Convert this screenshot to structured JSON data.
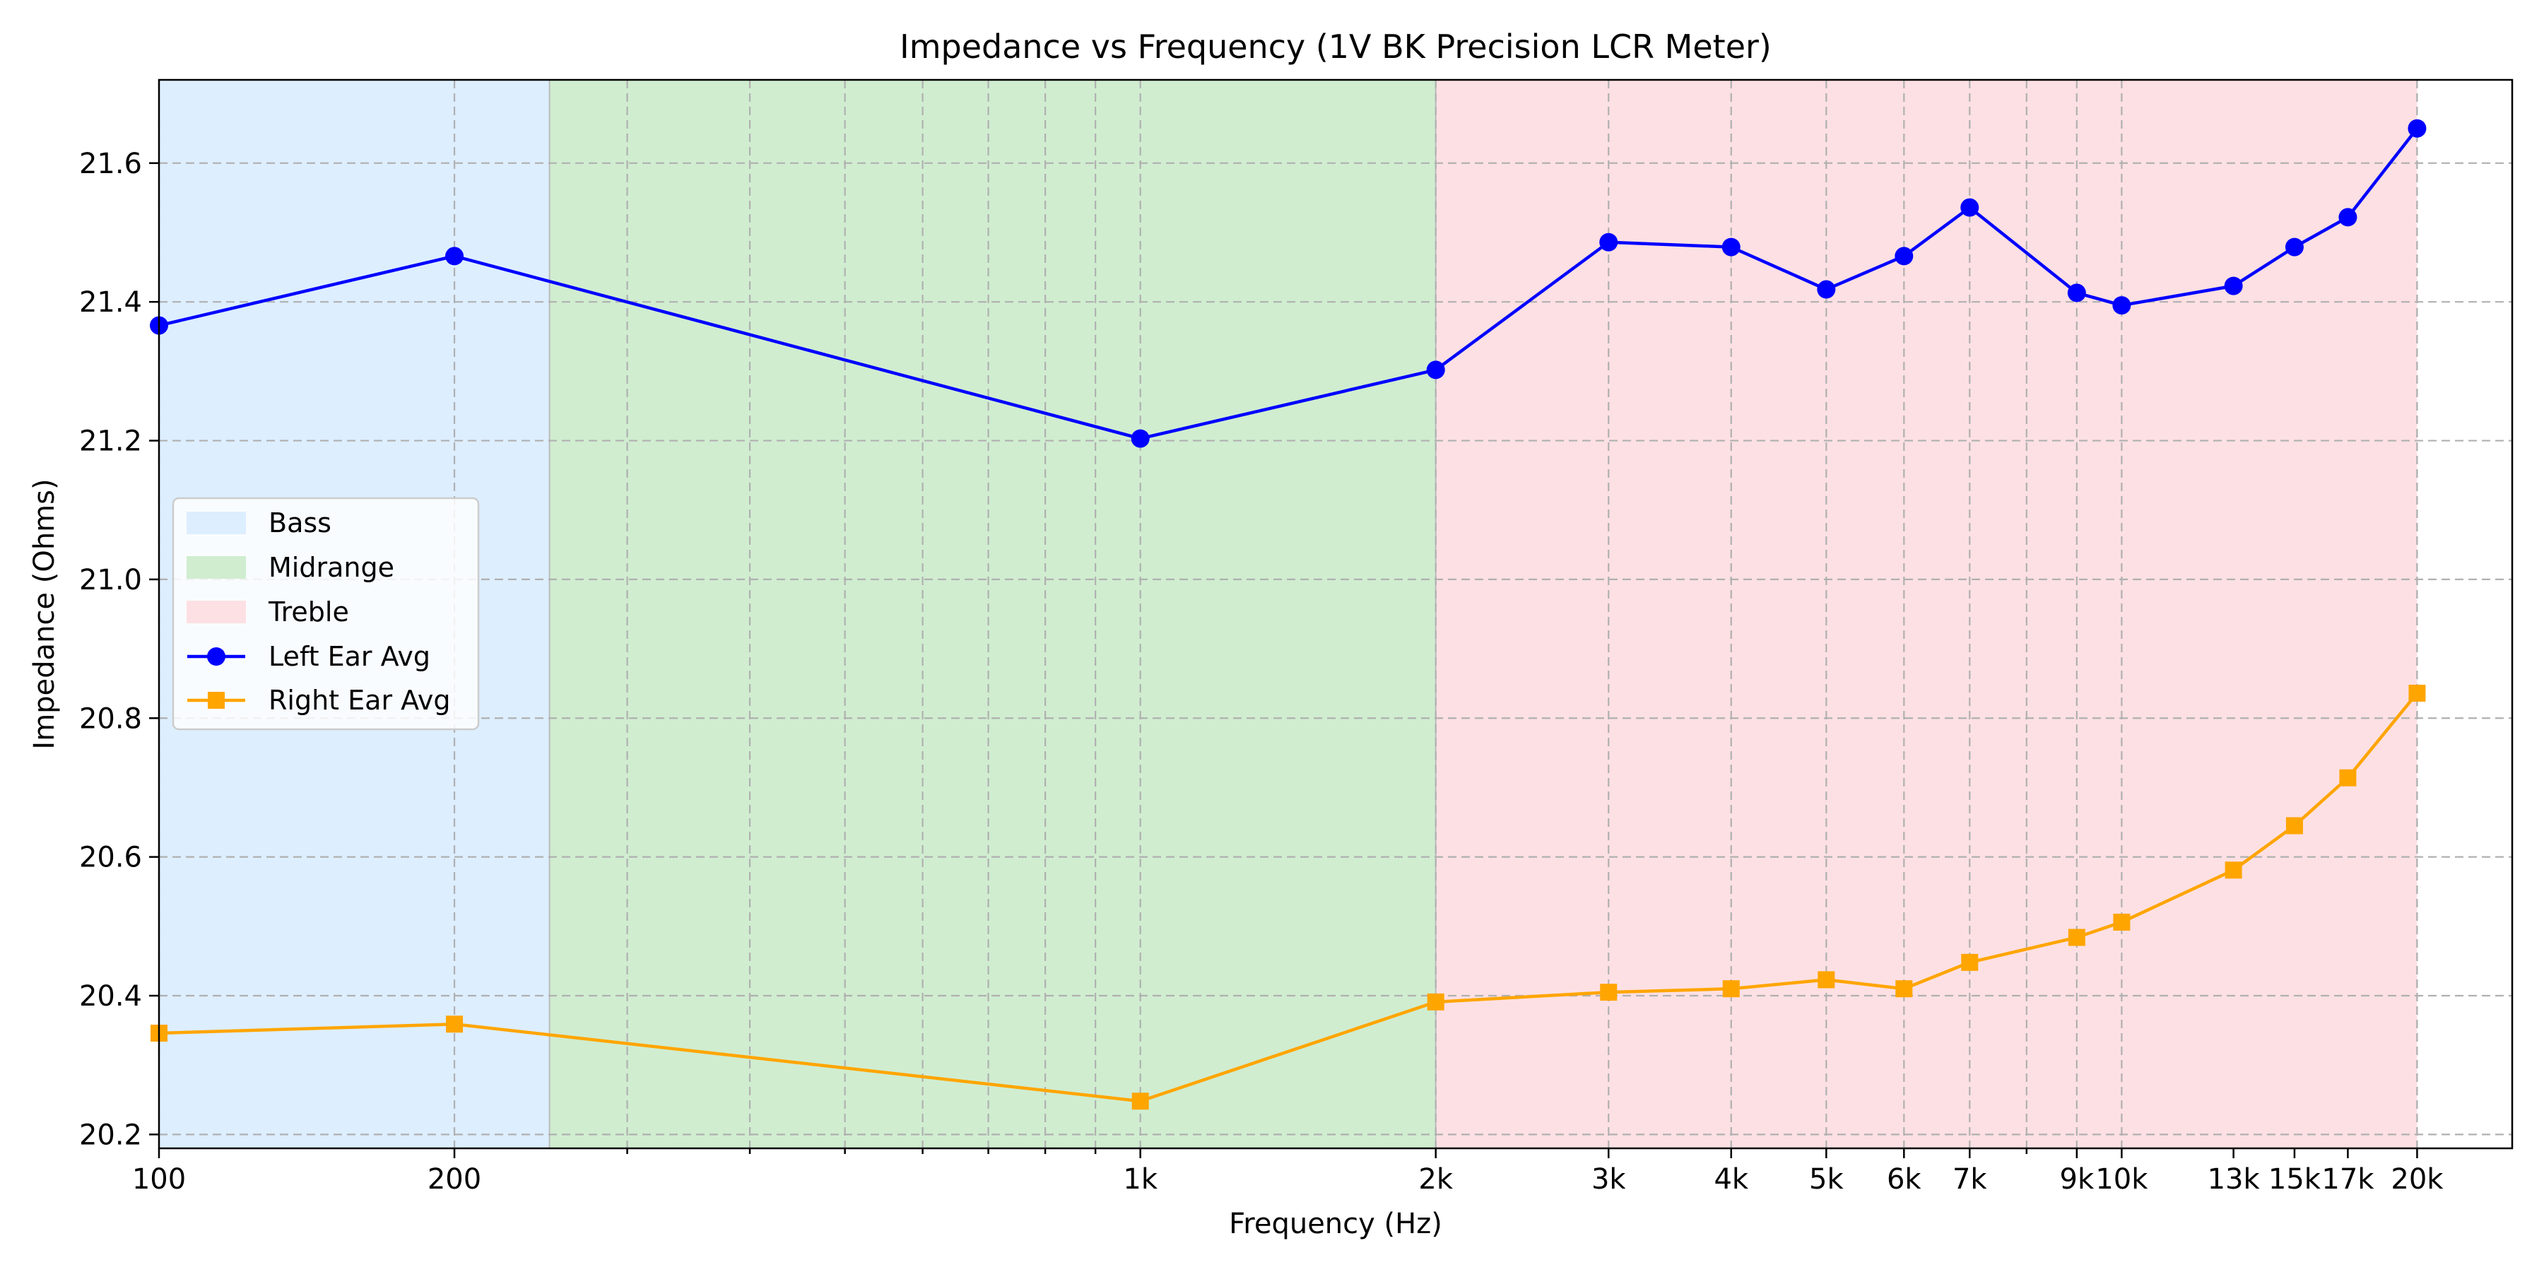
{
  "chart_data": {
    "type": "line",
    "title": "Impedance vs Frequency (1V BK Precision LCR Meter)",
    "xlabel": "Frequency (Hz)",
    "ylabel": "Impedance (Ohms)",
    "xscale": "log",
    "xlim": [
      100,
      25000
    ],
    "ylim": [
      20.18,
      21.72
    ],
    "grid": true,
    "legend_position": "center-left",
    "x": [
      100,
      200,
      1000,
      2000,
      3000,
      4000,
      5000,
      6000,
      7000,
      9000,
      10000,
      13000,
      15000,
      17000,
      20000
    ],
    "x_ticks": [
      100,
      200,
      1000,
      2000,
      3000,
      4000,
      5000,
      6000,
      7000,
      9000,
      10000,
      13000,
      15000,
      17000,
      20000
    ],
    "x_tick_labels": [
      "100",
      "200",
      "1k",
      "2k",
      "3k",
      "4k",
      "5k",
      "6k",
      "7k",
      "9k",
      "10k",
      "13k",
      "15k",
      "17k",
      "20k"
    ],
    "y_ticks": [
      20.2,
      20.4,
      20.6,
      20.8,
      21.0,
      21.2,
      21.4,
      21.6
    ],
    "y_tick_labels": [
      "20.2",
      "20.4",
      "20.6",
      "20.8",
      "21.0",
      "21.2",
      "21.4",
      "21.6"
    ],
    "bands": [
      {
        "name": "Bass",
        "from": 100,
        "to": 250,
        "color": "#ddeeff"
      },
      {
        "name": "Midrange",
        "from": 250,
        "to": 2000,
        "color": "#d0edd0"
      },
      {
        "name": "Treble",
        "from": 2000,
        "to": 20000,
        "color": "#fde0e3"
      }
    ],
    "series": [
      {
        "name": "Left Ear Avg",
        "color": "#0000ff",
        "marker": "circle",
        "values": [
          21.366,
          21.466,
          21.203,
          21.302,
          21.486,
          21.479,
          21.418,
          21.466,
          21.536,
          21.413,
          21.395,
          21.423,
          21.479,
          21.522,
          21.65
        ]
      },
      {
        "name": "Right Ear Avg",
        "color": "#ffa500",
        "marker": "square",
        "values": [
          20.346,
          20.359,
          20.248,
          20.391,
          20.405,
          20.41,
          20.423,
          20.41,
          20.448,
          20.484,
          20.506,
          20.581,
          20.645,
          20.714,
          20.836
        ]
      }
    ]
  }
}
